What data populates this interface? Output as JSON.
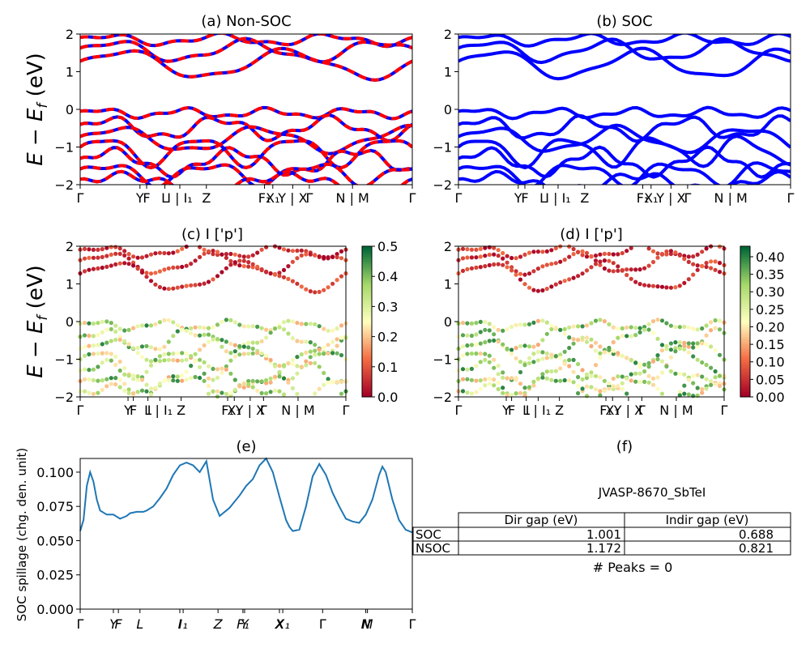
{
  "panels": {
    "a": {
      "title": "(a) Non-SOC"
    },
    "b": {
      "title": "(b) SOC"
    },
    "c": {
      "title": "(c)  I ['p']"
    },
    "d": {
      "title": "(d) I ['p']"
    },
    "e": {
      "title": "(e)"
    },
    "f": {
      "title": "(f)"
    }
  },
  "band_ylabel": "E − E_f (eV)",
  "spillage_ylabel": "SOC spillage (chg. den. unit)",
  "kpath_labels": [
    "Γ",
    "Y",
    "F",
    "L",
    "I | I₁",
    "Z",
    "F₁",
    "X₁",
    "Y | X",
    "Γ",
    "N | M",
    "Γ"
  ],
  "kpath_labels_small": [
    "Γ",
    "Y",
    "F",
    "L",
    "I | I₁",
    "Z",
    "F₁",
    "X₁",
    "Y | X",
    "Γ",
    "N | M",
    "Γ"
  ],
  "kpath_labels_e": [
    "Γ",
    "Y",
    "F",
    "L",
    "I",
    "I₁",
    "Z",
    "F₁",
    "Y",
    "X",
    "X₁",
    "Γ",
    "N",
    "M",
    "Γ"
  ],
  "colorbars": {
    "c": {
      "ticks": [
        "0.0",
        "0.1",
        "0.2",
        "0.3",
        "0.4",
        "0.5"
      ],
      "max": 0.5
    },
    "d": {
      "ticks": [
        "0.00",
        "0.05",
        "0.10",
        "0.15",
        "0.20",
        "0.25",
        "0.30",
        "0.35",
        "0.40"
      ],
      "max": 0.43
    }
  },
  "colors": {
    "nonsoc_red": "#ff0000",
    "nonsoc_blue": "#0000ff",
    "soc_blue": "#0000ff",
    "spillage_line": "#1f77b4"
  },
  "gap_table": {
    "material": "JVASP-8670_SbTeI",
    "col_headers": [
      "Dir gap (eV)",
      "Indir gap (eV)"
    ],
    "rows": [
      {
        "label": "SOC",
        "dir": "1.001",
        "indir": "0.688"
      },
      {
        "label": "NSOC",
        "dir": "1.172",
        "indir": "0.821"
      }
    ],
    "peaks_text": "# Peaks = 0"
  },
  "chart_data": [
    {
      "type": "line",
      "title": "(a) Non-SOC",
      "xlabel": "",
      "ylabel": "E − E_f (eV)",
      "ylim": [
        -2,
        2
      ],
      "yticks": [
        -2,
        -1,
        0,
        1,
        2
      ],
      "series": [
        {
          "band": "conduction",
          "x": [
            0,
            0.03,
            0.08,
            0.13,
            0.2,
            0.28,
            0.33,
            0.38,
            0.42,
            0.46,
            0.5,
            0.56,
            0.6,
            0.66,
            0.7,
            0.73,
            0.78,
            0.84,
            0.9,
            0.95,
            1.0
          ],
          "y": [
            1.7,
            1.6,
            1.35,
            1.65,
            1.6,
            1.7,
            1.45,
            1.3,
            1.1,
            0.85,
            1.3,
            1.7,
            1.6,
            1.85,
            1.65,
            1.4,
            1.25,
            1.6,
            1.35,
            1.7,
            1.75
          ]
        },
        {
          "band": "valence",
          "x": [
            0,
            0.05,
            0.1,
            0.18,
            0.25,
            0.3,
            0.36,
            0.4,
            0.45,
            0.5,
            0.58,
            0.65,
            0.7,
            0.73,
            0.8,
            0.86,
            0.92,
            1.0
          ],
          "y": [
            -0.1,
            -0.15,
            0.0,
            0.0,
            -0.05,
            -0.15,
            -0.05,
            -0.3,
            -0.35,
            -0.1,
            -0.2,
            -0.05,
            -0.15,
            -0.2,
            -0.05,
            -0.1,
            0.0,
            0.0
          ]
        }
      ]
    },
    {
      "type": "line",
      "title": "(b) SOC",
      "ylabel": "",
      "ylim": [
        -2,
        2
      ],
      "yticks": [
        -2,
        -1,
        0,
        1,
        2
      ],
      "series": [
        {
          "band": "conduction",
          "x": [
            0,
            0.05,
            0.15,
            0.25,
            0.3,
            0.36,
            0.38,
            0.42,
            0.5,
            0.56,
            0.6,
            0.66,
            0.73,
            0.82,
            0.9,
            1.0
          ],
          "y": [
            1.25,
            1.2,
            1.5,
            1.45,
            1.55,
            1.15,
            0.95,
            0.7,
            1.1,
            1.5,
            1.45,
            1.6,
            1.35,
            1.55,
            1.2,
            1.25
          ]
        },
        {
          "band": "valence",
          "x": [
            0,
            0.05,
            0.12,
            0.2,
            0.3,
            0.38,
            0.45,
            0.52,
            0.6,
            0.7,
            0.78,
            0.86,
            0.92,
            1.0
          ],
          "y": [
            -0.25,
            -0.2,
            -0.15,
            0.0,
            -0.1,
            -0.25,
            -0.2,
            -0.05,
            -0.35,
            -0.1,
            -0.3,
            -0.1,
            0.0,
            0.0
          ]
        }
      ]
    },
    {
      "type": "scatter",
      "title": "(c)  I ['p']",
      "ylabel": "E − E_f (eV)",
      "ylim": [
        -2,
        2
      ],
      "colorbar_range": [
        0,
        0.5
      ]
    },
    {
      "type": "scatter",
      "title": "(d) I ['p']",
      "ylim": [
        -2,
        2
      ],
      "colorbar_range": [
        0,
        0.43
      ]
    },
    {
      "type": "line",
      "title": "(e)",
      "ylabel": "SOC spillage (chg. den. unit)",
      "ylim": [
        0,
        0.11
      ],
      "yticks": [
        "0.000",
        "0.025",
        "0.050",
        "0.075",
        "0.100"
      ],
      "x": [
        0,
        0.01,
        0.02,
        0.03,
        0.04,
        0.05,
        0.06,
        0.08,
        0.1,
        0.12,
        0.14,
        0.15,
        0.17,
        0.19,
        0.2,
        0.22,
        0.24,
        0.26,
        0.28,
        0.3,
        0.32,
        0.34,
        0.36,
        0.38,
        0.4,
        0.42,
        0.43,
        0.44,
        0.45,
        0.46,
        0.48,
        0.5,
        0.52,
        0.54,
        0.56,
        0.58,
        0.6,
        0.62,
        0.63,
        0.64,
        0.66,
        0.68,
        0.7,
        0.72,
        0.74,
        0.76,
        0.78,
        0.8,
        0.82,
        0.84,
        0.86,
        0.88,
        0.9,
        0.91,
        0.92,
        0.94,
        0.96,
        0.98,
        1.0
      ],
      "y": [
        0.057,
        0.065,
        0.09,
        0.1,
        0.093,
        0.08,
        0.072,
        0.069,
        0.069,
        0.066,
        0.068,
        0.07,
        0.071,
        0.071,
        0.072,
        0.075,
        0.081,
        0.088,
        0.098,
        0.105,
        0.107,
        0.105,
        0.1,
        0.108,
        0.08,
        0.068,
        0.07,
        0.072,
        0.074,
        0.077,
        0.083,
        0.09,
        0.095,
        0.105,
        0.11,
        0.1,
        0.082,
        0.065,
        0.06,
        0.057,
        0.058,
        0.075,
        0.097,
        0.106,
        0.098,
        0.085,
        0.075,
        0.066,
        0.064,
        0.063,
        0.069,
        0.08,
        0.098,
        0.104,
        0.1,
        0.08,
        0.065,
        0.058,
        0.056
      ]
    }
  ]
}
